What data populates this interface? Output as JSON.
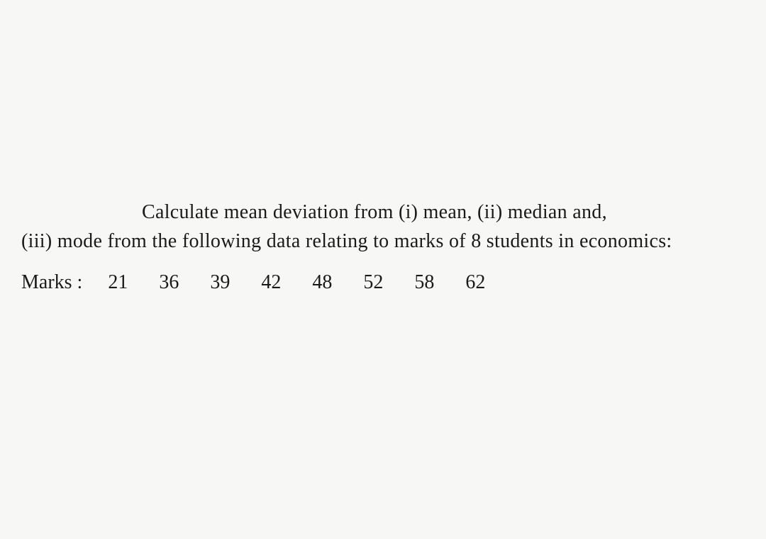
{
  "question": {
    "line1": "Calculate mean deviation from (i) mean, (ii) median and,",
    "line2": "(iii) mode from the following data relating to marks of 8 students in",
    "line3": "economics:"
  },
  "data": {
    "label": "Marks :",
    "values": [
      "21",
      "36",
      "39",
      "42",
      "48",
      "52",
      "58",
      "62"
    ]
  },
  "styling": {
    "background_color": "#f7f7f5",
    "text_color": "#1a1a1a",
    "font_family": "Georgia, Times New Roman, serif",
    "font_size_body": 28,
    "line_height": 1.45,
    "first_line_indent": 170,
    "data_gap": 40
  }
}
